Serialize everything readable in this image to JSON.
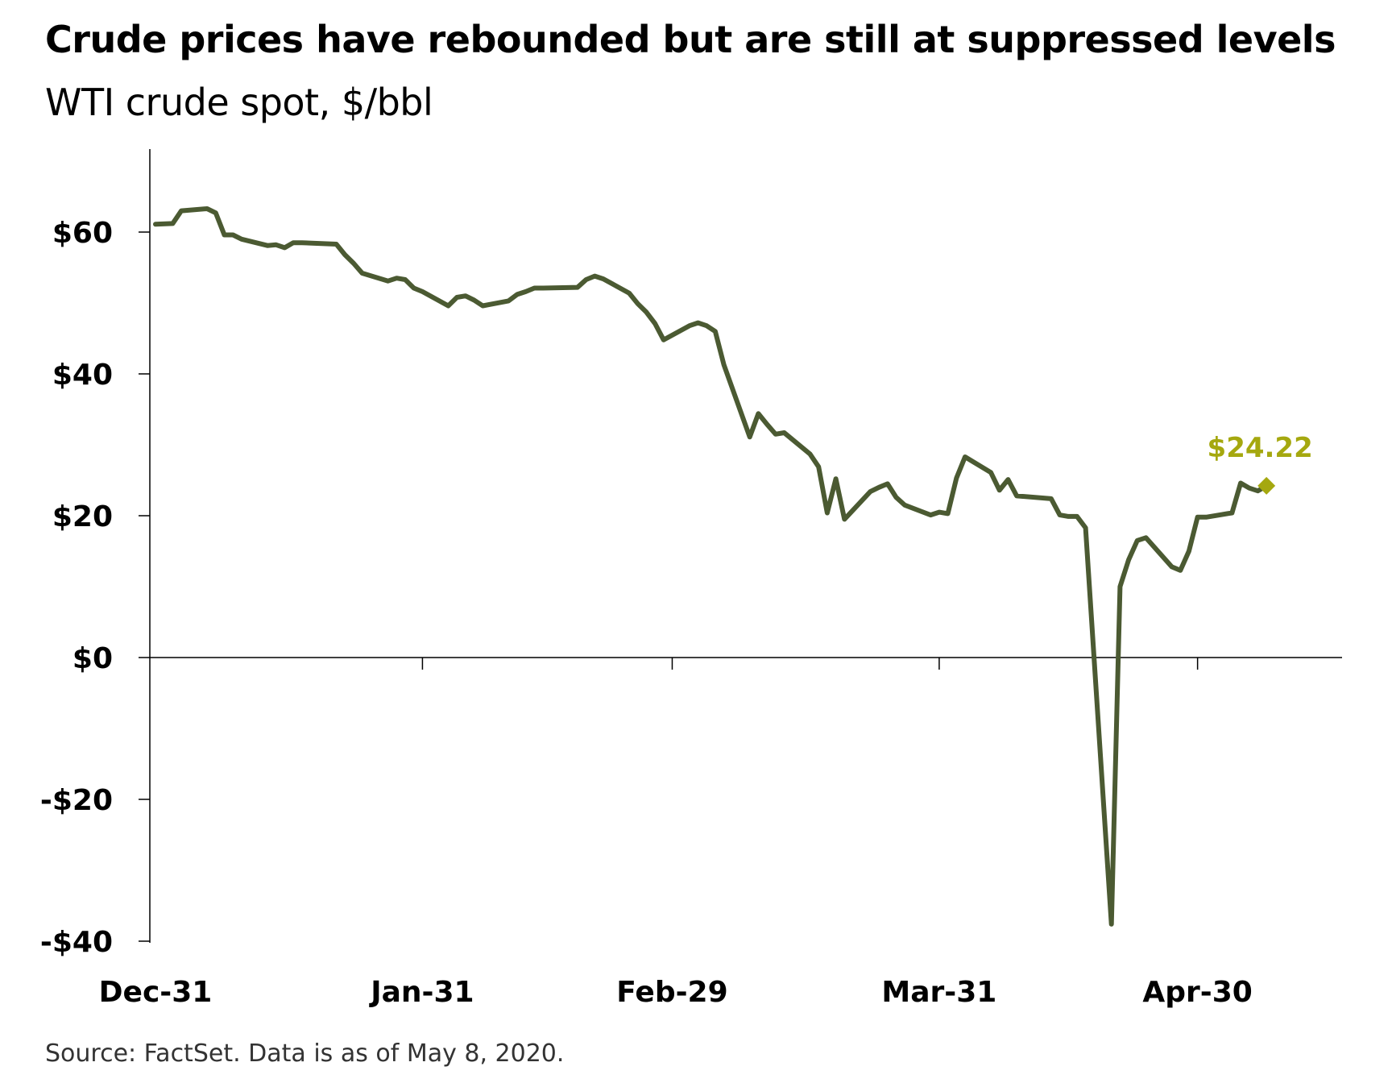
{
  "title": "Crude prices have rebounded but are still at suppressed levels",
  "subtitle": "WTI crude spot, $/bbl",
  "source": "Source: FactSet. Data is as of May 8, 2020.",
  "colors": {
    "line": "#4b5a32",
    "highlight": "#a5a80f",
    "axis": "#000000"
  },
  "chart_data": {
    "type": "line",
    "title": "Crude prices have rebounded but are still at suppressed levels",
    "subtitle": "WTI crude spot, $/bbl",
    "xlabel": "",
    "ylabel": "",
    "x_type": "date",
    "xlim": [
      "2019-12-31",
      "2020-05-15"
    ],
    "ylim": [
      -40,
      70
    ],
    "y_ticks": [
      60,
      40,
      20,
      0,
      -20,
      -40
    ],
    "y_tick_labels": [
      "$60",
      "$40",
      "$20",
      "$0",
      "-$20",
      "-$40"
    ],
    "x_ticks": [
      "2019-12-31",
      "2020-01-31",
      "2020-02-29",
      "2020-03-31",
      "2020-04-30"
    ],
    "x_tick_labels": [
      "Dec-31",
      "Jan-31",
      "Feb-29",
      "Mar-31",
      "Apr-30"
    ],
    "grid": false,
    "legend": "none",
    "series": [
      {
        "x": [
          "2019-12-31",
          "2020-01-02",
          "2020-01-03",
          "2020-01-06",
          "2020-01-07",
          "2020-01-08",
          "2020-01-09",
          "2020-01-10",
          "2020-01-13",
          "2020-01-14",
          "2020-01-15",
          "2020-01-16",
          "2020-01-17",
          "2020-01-21",
          "2020-01-22",
          "2020-01-23",
          "2020-01-24",
          "2020-01-27",
          "2020-01-28",
          "2020-01-29",
          "2020-01-30",
          "2020-01-31",
          "2020-02-03",
          "2020-02-04",
          "2020-02-05",
          "2020-02-06",
          "2020-02-07",
          "2020-02-10",
          "2020-02-11",
          "2020-02-12",
          "2020-02-13",
          "2020-02-14",
          "2020-02-18",
          "2020-02-19",
          "2020-02-20",
          "2020-02-21",
          "2020-02-24",
          "2020-02-25",
          "2020-02-26",
          "2020-02-27",
          "2020-02-28",
          "2020-03-02",
          "2020-03-03",
          "2020-03-04",
          "2020-03-05",
          "2020-03-06",
          "2020-03-09",
          "2020-03-10",
          "2020-03-11",
          "2020-03-12",
          "2020-03-13",
          "2020-03-16",
          "2020-03-17",
          "2020-03-18",
          "2020-03-19",
          "2020-03-20",
          "2020-03-23",
          "2020-03-24",
          "2020-03-25",
          "2020-03-26",
          "2020-03-27",
          "2020-03-30",
          "2020-03-31",
          "2020-04-01",
          "2020-04-02",
          "2020-04-03",
          "2020-04-06",
          "2020-04-07",
          "2020-04-08",
          "2020-04-09",
          "2020-04-13",
          "2020-04-14",
          "2020-04-15",
          "2020-04-16",
          "2020-04-17",
          "2020-04-20",
          "2020-04-21",
          "2020-04-22",
          "2020-04-23",
          "2020-04-24",
          "2020-04-27",
          "2020-04-28",
          "2020-04-29",
          "2020-04-30",
          "2020-05-01",
          "2020-05-04",
          "2020-05-05",
          "2020-05-06",
          "2020-05-07",
          "2020-05-08"
        ],
        "y": [
          61.1,
          61.2,
          63.0,
          63.3,
          62.7,
          59.6,
          59.6,
          59.0,
          58.1,
          58.2,
          57.8,
          58.5,
          58.5,
          58.3,
          56.8,
          55.6,
          54.2,
          53.1,
          53.5,
          53.3,
          52.1,
          51.6,
          49.6,
          50.8,
          51.0,
          50.4,
          49.6,
          50.3,
          51.2,
          51.6,
          52.1,
          52.1,
          52.2,
          53.3,
          53.8,
          53.4,
          51.4,
          49.9,
          48.7,
          47.1,
          44.8,
          46.8,
          47.2,
          46.8,
          46.0,
          41.3,
          31.1,
          34.4,
          32.9,
          31.5,
          31.7,
          28.7,
          26.9,
          20.4,
          25.2,
          19.5,
          23.4,
          24.0,
          24.5,
          22.6,
          21.5,
          20.1,
          20.5,
          20.3,
          25.3,
          28.3,
          26.1,
          23.6,
          25.1,
          22.8,
          22.4,
          20.1,
          19.9,
          19.9,
          18.3,
          -37.6,
          10.0,
          13.8,
          16.5,
          16.9,
          12.8,
          12.3,
          15.0,
          19.8,
          19.8,
          20.4,
          24.6,
          23.9,
          23.5,
          24.22
        ]
      }
    ],
    "end_point": {
      "x": "2020-05-08",
      "y": 24.22,
      "label": "$24.22",
      "marker": "diamond"
    }
  }
}
